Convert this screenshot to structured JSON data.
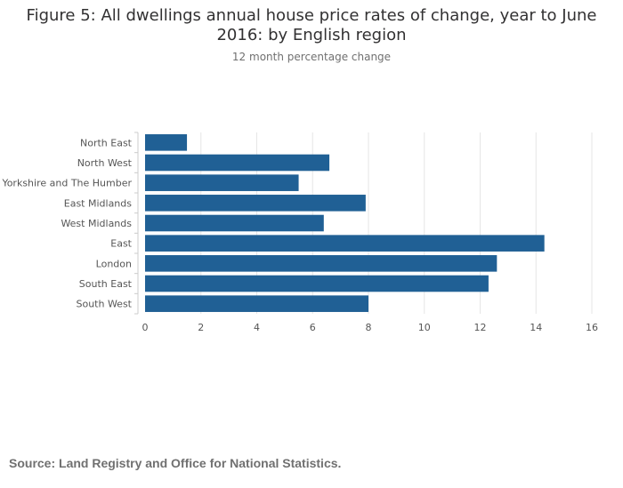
{
  "title_lines": [
    "Figure 5: All dwellings annual house price rates of change, year to June",
    "2016: by English region"
  ],
  "subtitle": "12 month percentage change",
  "source": "Source: Land Registry and Office for National Statistics.",
  "colors": {
    "bar": "#206095",
    "grid": "#e6e6e6",
    "axis": "#cccccc",
    "text": "#555555"
  },
  "chart_data": {
    "type": "bar",
    "orientation": "horizontal",
    "title": "Figure 5: All dwellings annual house price rates of change, year to June 2016: by English region",
    "subtitle": "12 month percentage change",
    "categories": [
      "North East",
      "North West",
      "Yorkshire and The Humber",
      "East Midlands",
      "West Midlands",
      "East",
      "London",
      "South East",
      "South West"
    ],
    "values": [
      1.5,
      6.6,
      5.5,
      7.9,
      6.4,
      14.3,
      12.6,
      12.3,
      8.0
    ],
    "xlabel": "",
    "ylabel": "",
    "xlim": [
      0,
      16
    ],
    "ticks": [
      0,
      2,
      4,
      6,
      8,
      10,
      12,
      14,
      16
    ],
    "tick_labels": [
      "0",
      "2",
      "4",
      "6",
      "8",
      "10",
      "12",
      "14",
      "16"
    ],
    "grid": true
  }
}
